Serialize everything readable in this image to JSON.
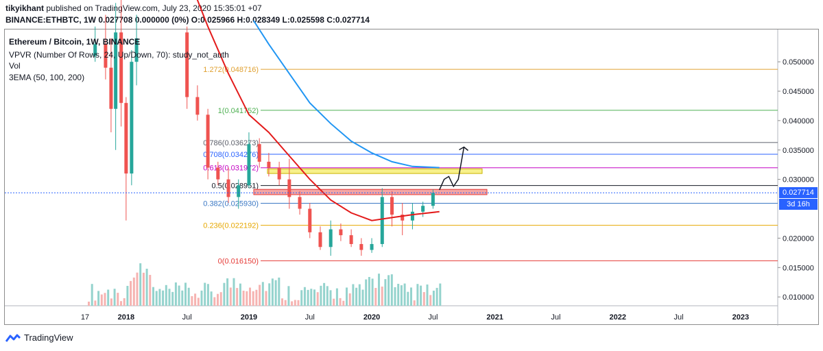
{
  "header": {
    "user": "tikyikhant",
    "published_text": "published on TradingView.com, July 23, 2020 15:35:01 +07",
    "symbol_line": "BINANCE:ETHBTC, 1W 0.027708 0.000000 (0%) O:0.025966 H:0.028349 L:0.025598 C:0.027714"
  },
  "legend": {
    "title": "Ethereum / Bitcoin, 1W, BINANCE",
    "vpvr": "VPVR (Number Of Rows, 24, Up/Down, 70): study_not_auth",
    "vol": "Vol",
    "ema": "3EMA (50, 100, 200)"
  },
  "footer": {
    "brand": "TradingView",
    "logo_icon": "tradingview-logo-icon"
  },
  "colors": {
    "up": "#26a69a",
    "down": "#ef5350",
    "vol_up": "#94d3cd",
    "vol_down": "#f6b3b1",
    "ema_fast": "#e31b1b",
    "ema_slow": "#2196f3",
    "last_price": "#131722",
    "countdown": "#2962ff",
    "last_label_bg": "#2962ff"
  },
  "chart_data": {
    "type": "candlestick",
    "symbol": "ETHBTC",
    "interval": "1W",
    "y_axis": {
      "ticks": [
        0.05,
        0.045,
        0.04,
        0.035,
        0.03,
        0.02,
        0.015,
        0.01
      ],
      "tick_labels": [
        "0.050000",
        "0.045000",
        "0.040000",
        "0.035000",
        "0.030000",
        "0.020000",
        "0.015000",
        "0.010000"
      ],
      "ylim": [
        0.0085,
        0.0555
      ]
    },
    "x_axis": {
      "ticks": [
        "2017-09",
        "2018-01",
        "2018-07",
        "2019-01",
        "2019-07",
        "2020-01",
        "2020-07",
        "2021-01",
        "2021-07",
        "2022-01",
        "2022-07",
        "2023-01"
      ],
      "tick_labels": [
        "17",
        "2018",
        "Jul",
        "2019",
        "Jul",
        "2020",
        "Jul",
        "2021",
        "Jul",
        "2022",
        "Jul",
        "2023"
      ]
    },
    "last_price": {
      "value": 0.027714,
      "label": "0.027714",
      "countdown": "3d 16h"
    },
    "fib_levels": [
      {
        "ratio": "1.272",
        "value": 0.048716,
        "label": "1.272(0.048716)",
        "color": "#e0a030"
      },
      {
        "ratio": "1",
        "value": 0.041752,
        "label": "1(0.041752)",
        "color": "#4caf50"
      },
      {
        "ratio": "0.786",
        "value": 0.036273,
        "label": "0.786(0.036273)",
        "color": "#5d606b"
      },
      {
        "ratio": "0.708",
        "value": 0.034276,
        "label": "0.708(0.034276)",
        "color": "#2962ff"
      },
      {
        "ratio": "0.618",
        "value": 0.031972,
        "label": "0.618(0.031972)",
        "color": "#c300c3"
      },
      {
        "ratio": "0.5",
        "value": 0.028951,
        "label": "0.5(0.028951)",
        "color": "#131722"
      },
      {
        "ratio": "0.382",
        "value": 0.02593,
        "label": "0.382(0.025930)",
        "color": "#3b78c4"
      },
      {
        "ratio": "0.236",
        "value": 0.022192,
        "label": "0.236(0.022192)",
        "color": "#e6a700"
      },
      {
        "ratio": "0",
        "value": 0.01615,
        "label": "0(0.016150)",
        "color": "#e53935"
      }
    ],
    "zones": [
      {
        "from": 0.031,
        "to": 0.0318,
        "color": "#f7f08a",
        "border": "#c9b400",
        "name": "supply-zone"
      },
      {
        "from": 0.0274,
        "to": 0.0283,
        "color": "#f4a6a4",
        "border": "#e53935",
        "name": "resistance-zone"
      }
    ],
    "ema_50": [
      [
        "2018-07-15",
        0.063
      ],
      [
        "2018-09-01",
        0.056
      ],
      [
        "2018-11-01",
        0.048
      ],
      [
        "2019-01-01",
        0.041
      ],
      [
        "2019-03-01",
        0.038
      ],
      [
        "2019-05-01",
        0.034
      ],
      [
        "2019-07-01",
        0.03
      ],
      [
        "2019-09-01",
        0.0265
      ],
      [
        "2019-11-01",
        0.0243
      ],
      [
        "2020-01-01",
        0.023
      ],
      [
        "2020-03-01",
        0.0235
      ],
      [
        "2020-05-01",
        0.024
      ],
      [
        "2020-07-20",
        0.0245
      ]
    ],
    "ema_100": [
      [
        "2019-01-15",
        0.057
      ],
      [
        "2019-03-01",
        0.053
      ],
      [
        "2019-05-01",
        0.048
      ],
      [
        "2019-07-01",
        0.043
      ],
      [
        "2019-09-01",
        0.0395
      ],
      [
        "2019-11-01",
        0.0365
      ],
      [
        "2020-01-01",
        0.0345
      ],
      [
        "2020-03-01",
        0.033
      ],
      [
        "2020-05-01",
        0.0322
      ],
      [
        "2020-07-20",
        0.032
      ]
    ],
    "projection": [
      [
        "2020-07-20",
        0.0282
      ],
      [
        "2020-08-03",
        0.03
      ],
      [
        "2020-08-17",
        0.0305
      ],
      [
        "2020-08-31",
        0.0288
      ],
      [
        "2020-09-14",
        0.03
      ],
      [
        "2020-10-01",
        0.0355
      ]
    ],
    "candles": [
      [
        "2017-10",
        0.051,
        0.056,
        0.05,
        0.053
      ],
      [
        "2017-11",
        0.053,
        0.058,
        0.047,
        0.049
      ],
      [
        "2017-11b",
        0.049,
        0.054,
        0.038,
        0.042
      ],
      [
        "2017-12",
        0.042,
        0.06,
        0.035,
        0.055
      ],
      [
        "2017-12b",
        0.055,
        0.062,
        0.039,
        0.043
      ],
      [
        "2018-01",
        0.043,
        0.044,
        0.023,
        0.031
      ],
      [
        "2018-01b",
        0.031,
        0.052,
        0.029,
        0.05
      ],
      [
        "2018-02",
        0.05,
        0.058,
        0.046,
        0.054
      ],
      [
        "2018-07",
        0.055,
        0.056,
        0.042,
        0.044
      ],
      [
        "2018-08",
        0.044,
        0.046,
        0.04,
        0.041
      ],
      [
        "2018-09",
        0.041,
        0.042,
        0.03,
        0.032
      ],
      [
        "2018-10",
        0.032,
        0.033,
        0.029,
        0.03
      ],
      [
        "2018-11",
        0.03,
        0.032,
        0.026,
        0.027
      ],
      [
        "2018-12",
        0.027,
        0.03,
        0.025,
        0.029
      ],
      [
        "2019-01",
        0.029,
        0.038,
        0.0285,
        0.036
      ],
      [
        "2019-02",
        0.036,
        0.037,
        0.032,
        0.033
      ],
      [
        "2019-03",
        0.033,
        0.0345,
        0.0305,
        0.032
      ],
      [
        "2019-04",
        0.032,
        0.033,
        0.029,
        0.03
      ],
      [
        "2019-05",
        0.03,
        0.0335,
        0.025,
        0.027
      ],
      [
        "2019-06",
        0.027,
        0.028,
        0.024,
        0.025
      ],
      [
        "2019-07",
        0.025,
        0.026,
        0.02,
        0.021
      ],
      [
        "2019-08",
        0.021,
        0.022,
        0.018,
        0.0185
      ],
      [
        "2019-09",
        0.0185,
        0.023,
        0.017,
        0.0215
      ],
      [
        "2019-10",
        0.0215,
        0.0225,
        0.0195,
        0.0205
      ],
      [
        "2019-11",
        0.0205,
        0.0215,
        0.0185,
        0.019
      ],
      [
        "2019-12",
        0.019,
        0.02,
        0.017,
        0.018
      ],
      [
        "2020-01",
        0.018,
        0.02,
        0.0175,
        0.019
      ],
      [
        "2020-02",
        0.019,
        0.0285,
        0.0185,
        0.027
      ],
      [
        "2020-03",
        0.027,
        0.028,
        0.022,
        0.024
      ],
      [
        "2020-04",
        0.024,
        0.026,
        0.0205,
        0.023
      ],
      [
        "2020-05",
        0.023,
        0.026,
        0.0215,
        0.0245
      ],
      [
        "2020-06",
        0.0245,
        0.0262,
        0.0236,
        0.0255
      ],
      [
        "2020-07",
        0.0255,
        0.0283,
        0.025,
        0.0277
      ]
    ]
  }
}
